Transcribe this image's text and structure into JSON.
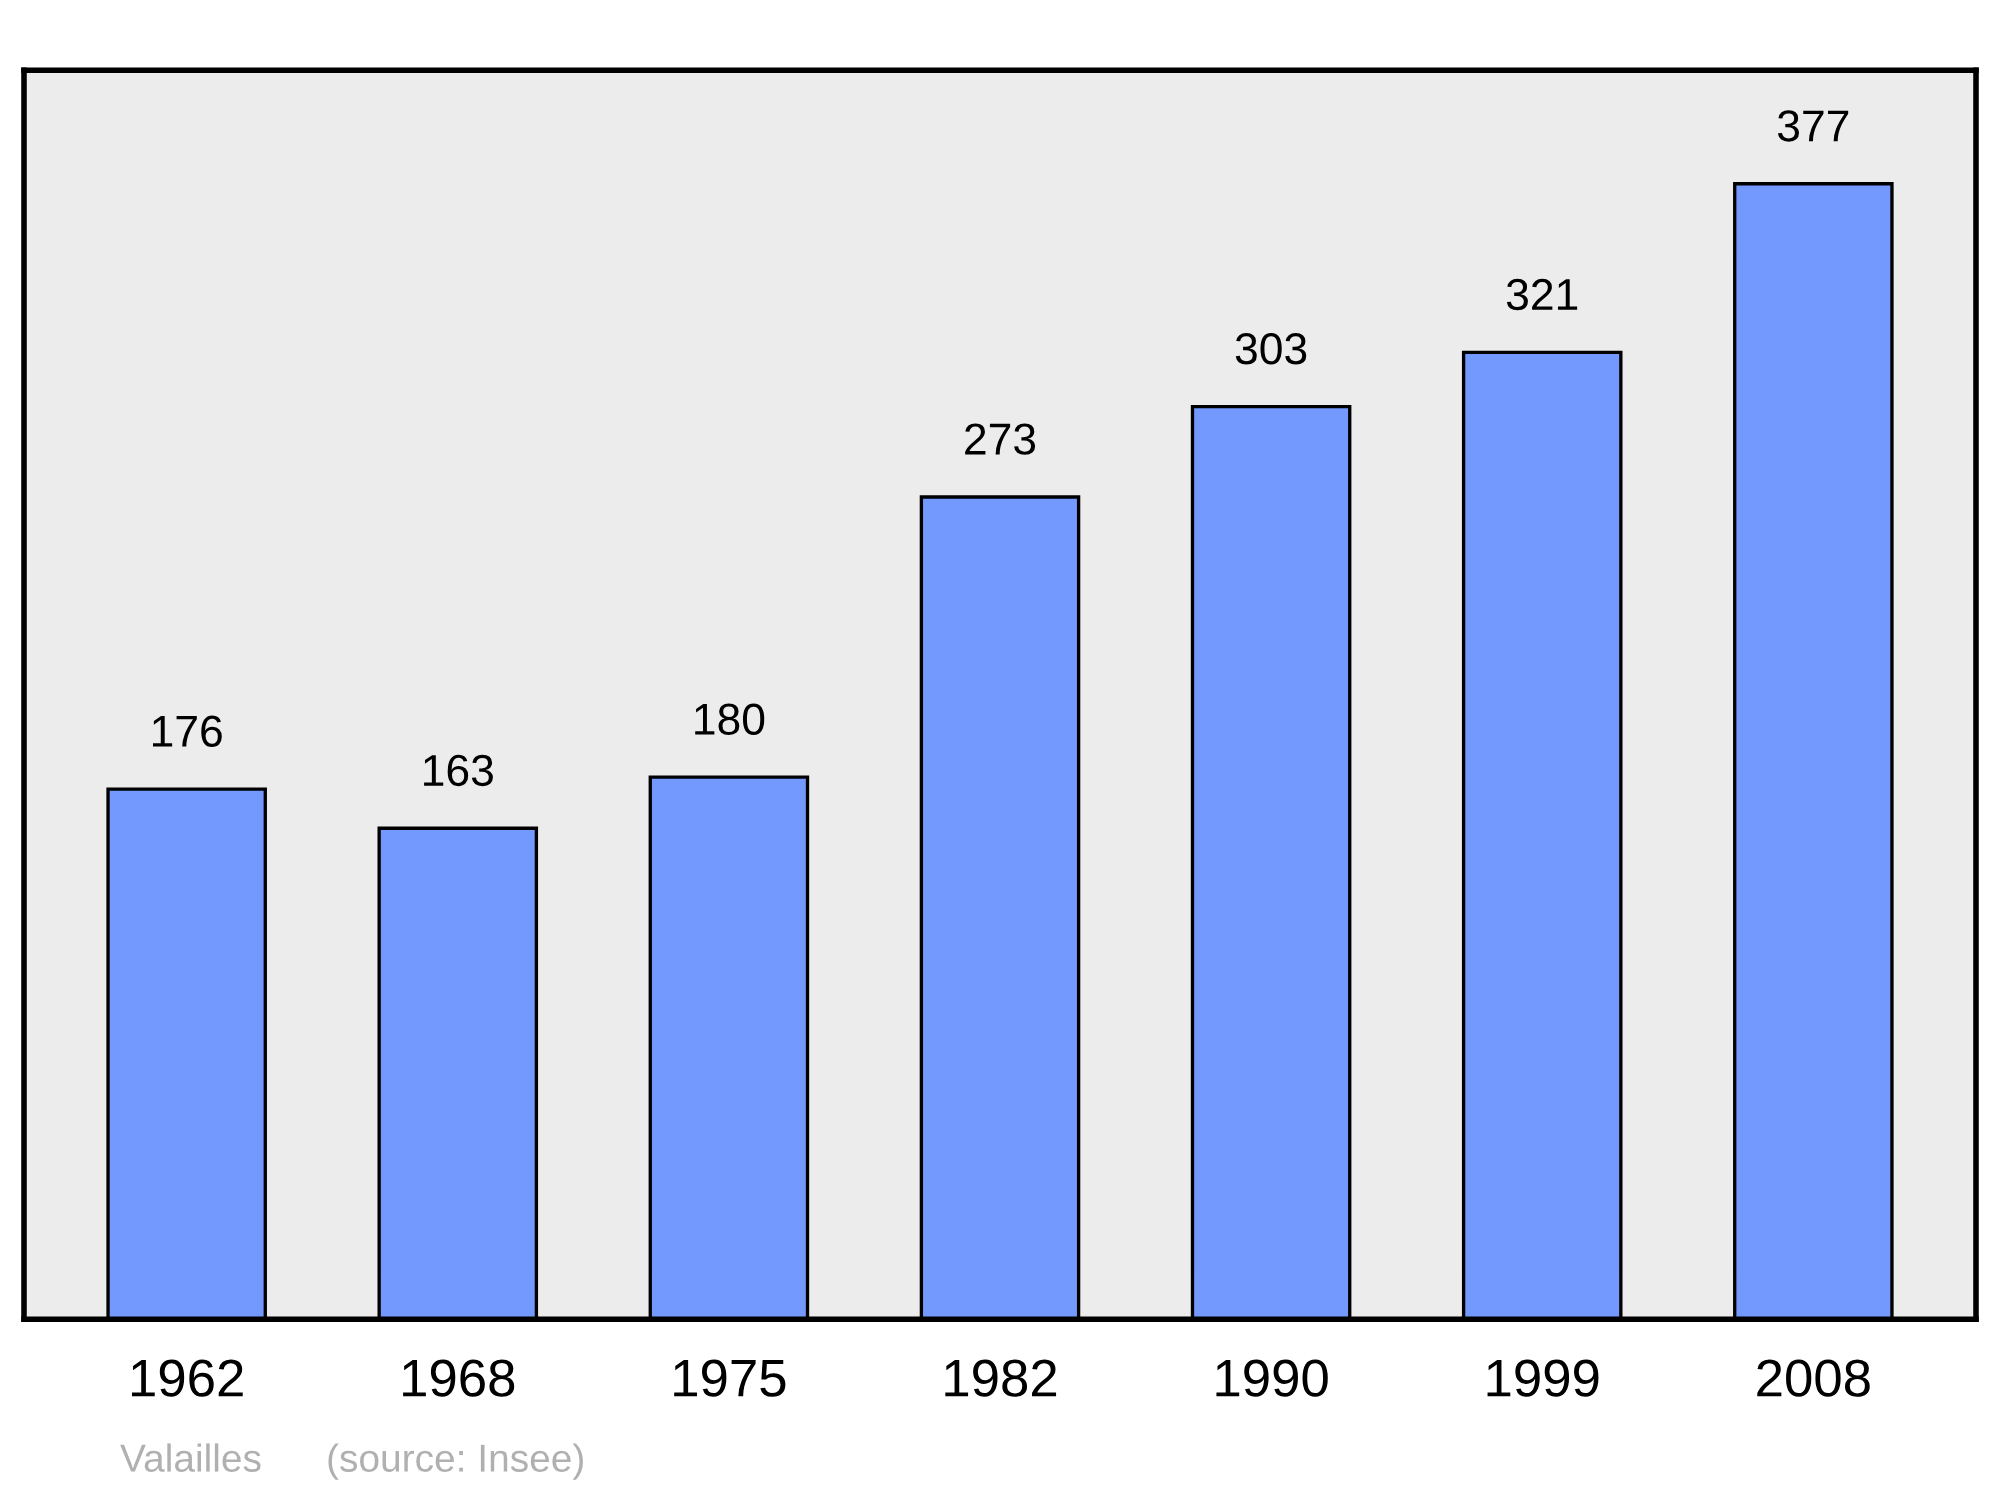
{
  "chart_data": {
    "type": "bar",
    "categories": [
      "1962",
      "1968",
      "1975",
      "1982",
      "1990",
      "1999",
      "2008"
    ],
    "values": [
      176,
      163,
      180,
      273,
      303,
      321,
      377
    ],
    "color": "#7399ff",
    "data_labels": true,
    "grid": false,
    "annotations": [
      "Valailles",
      "(source: Insee)"
    ]
  }
}
